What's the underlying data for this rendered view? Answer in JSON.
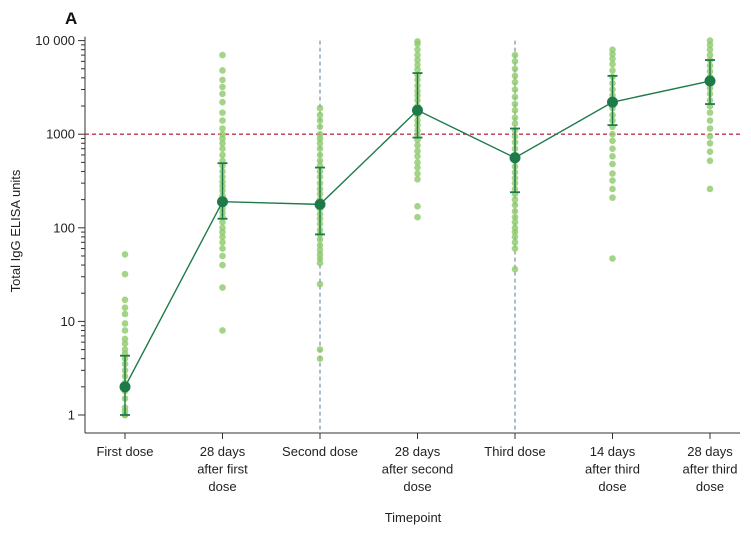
{
  "chart_data": {
    "type": "scatter",
    "panel_label": "A",
    "xlabel": "Timepoint",
    "ylabel": "Total IgG ELISA units",
    "yscale": "log",
    "ylim": [
      0.7,
      12000
    ],
    "yticks": [
      1,
      10,
      100,
      1000,
      10000
    ],
    "ytick_labels": [
      "1",
      "10",
      "100",
      "1000",
      "10 000"
    ],
    "threshold": 1000,
    "threshold_color": "#c0334d",
    "vertical_markers": [
      "Second dose",
      "Third dose"
    ],
    "marker_color": "#5a7a93",
    "point_color": "#8cc96a",
    "summary_color": "#1f7a4a",
    "categories": [
      [
        "First dose"
      ],
      [
        "28 days",
        "after first",
        "dose"
      ],
      [
        "Second dose"
      ],
      [
        "28 days",
        "after second",
        "dose"
      ],
      [
        "Third dose"
      ],
      [
        "14 days",
        "after third",
        "dose"
      ],
      [
        "28 days",
        "after third",
        "dose"
      ]
    ],
    "summary": [
      {
        "median": 2,
        "q1": 1,
        "q3": 4.3
      },
      {
        "median": 190,
        "q1": 125,
        "q3": 490
      },
      {
        "median": 178,
        "q1": 85,
        "q3": 440
      },
      {
        "median": 1800,
        "q1": 920,
        "q3": 4500
      },
      {
        "median": 560,
        "q1": 240,
        "q3": 1150
      },
      {
        "median": 2200,
        "q1": 1250,
        "q3": 4200
      },
      {
        "median": 3700,
        "q1": 2100,
        "q3": 6200
      }
    ],
    "points": [
      [
        52,
        32,
        17,
        14,
        12,
        9.5,
        8,
        6.5,
        5.8,
        5,
        4.5,
        4,
        3.5,
        3,
        2.6,
        2.2,
        2,
        1.8,
        1.5,
        1.2,
        1.1,
        1,
        1
      ],
      [
        7000,
        4800,
        3800,
        3200,
        2700,
        2200,
        1700,
        1400,
        1150,
        1000,
        900,
        800,
        700,
        600,
        520,
        460,
        400,
        350,
        310,
        280,
        250,
        220,
        200,
        180,
        160,
        145,
        130,
        115,
        100,
        90,
        80,
        70,
        60,
        50,
        40,
        23,
        8
      ],
      [
        1900,
        1600,
        1400,
        1200,
        1000,
        900,
        800,
        700,
        600,
        520,
        460,
        400,
        350,
        300,
        260,
        230,
        200,
        180,
        160,
        140,
        125,
        110,
        95,
        85,
        75,
        65,
        58,
        52,
        47,
        42,
        25,
        5,
        4
      ],
      [
        9800,
        9200,
        8000,
        7000,
        6200,
        5500,
        4900,
        4300,
        3800,
        3300,
        2900,
        2600,
        2300,
        2000,
        1800,
        1600,
        1400,
        1250,
        1100,
        980,
        870,
        760,
        660,
        580,
        500,
        440,
        380,
        330,
        170,
        130
      ],
      [
        7000,
        6000,
        5000,
        4200,
        3600,
        3000,
        2500,
        2100,
        1800,
        1500,
        1300,
        1100,
        950,
        820,
        700,
        600,
        520,
        450,
        390,
        340,
        300,
        260,
        230,
        200,
        175,
        150,
        130,
        115,
        100,
        90,
        80,
        70,
        60,
        36
      ],
      [
        8000,
        7200,
        6400,
        5600,
        4800,
        4100,
        3500,
        3000,
        2600,
        2200,
        1900,
        1600,
        1400,
        1200,
        1000,
        850,
        700,
        580,
        480,
        380,
        320,
        260,
        210,
        47
      ],
      [
        10000,
        9000,
        8000,
        7000,
        6200,
        5400,
        4700,
        4100,
        3600,
        3100,
        2700,
        2300,
        2000,
        1700,
        1400,
        1150,
        950,
        800,
        650,
        520,
        260
      ]
    ]
  }
}
